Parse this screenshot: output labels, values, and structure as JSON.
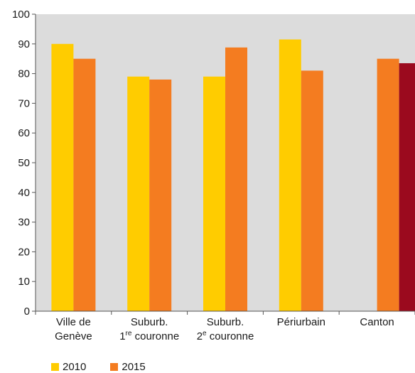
{
  "chart_data": {
    "type": "bar",
    "categories": [
      {
        "line1": "Ville de",
        "line2": "Genève",
        "sup": "",
        "line2_rest": ""
      },
      {
        "line1": "Suburb.",
        "line2": "1",
        "sup": "re",
        "line2_rest": " couronne"
      },
      {
        "line1": "Suburb.",
        "line2": "2",
        "sup": "e",
        "line2_rest": " couronne"
      },
      {
        "line1": "Périurbain",
        "line2": "",
        "sup": "",
        "line2_rest": ""
      },
      {
        "line1": "Canton",
        "line2": "",
        "sup": "",
        "line2_rest": ""
      }
    ],
    "series": [
      {
        "name": "2010",
        "color": "#ffcc00",
        "values": [
          90,
          79,
          79,
          91.5,
          null
        ]
      },
      {
        "name": "2015",
        "color": "#f47c20",
        "values": [
          85,
          78,
          88.8,
          81,
          85
        ]
      }
    ],
    "extra_bar": {
      "category_index": 4,
      "value": 83.5,
      "color": "#9b0a1e"
    },
    "yticks": [
      0,
      10,
      20,
      30,
      40,
      50,
      60,
      70,
      80,
      90,
      100
    ],
    "ylim": [
      0,
      100
    ],
    "grid": false,
    "plot_background": "#dcdcdc",
    "legend_position": "bottom-left"
  }
}
